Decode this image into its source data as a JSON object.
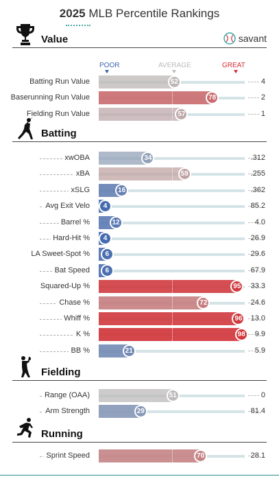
{
  "header": {
    "year": "2025",
    "title": "MLB Percentile Rankings"
  },
  "legend": {
    "poor": "POOR",
    "average": "AVERAGE",
    "great": "GREAT"
  },
  "savant_label": "savant",
  "colors": {
    "great": "#d22d32",
    "poor": "#3b64ae",
    "average": "#bdbdbd"
  },
  "sections": {
    "value": {
      "title": "Value",
      "icon": "trophy-icon",
      "rows": [
        {
          "label": "Batting Run Value",
          "pct": 52,
          "value": "4"
        },
        {
          "label": "Baserunning Run Value",
          "pct": 78,
          "value": "2"
        },
        {
          "label": "Fielding Run Value",
          "pct": 57,
          "value": "1"
        }
      ]
    },
    "batting": {
      "title": "Batting",
      "icon": "batter-icon",
      "rows": [
        {
          "label": "xwOBA",
          "pct": 34,
          "value": ".312"
        },
        {
          "label": "xBA",
          "pct": 59,
          "value": ".255"
        },
        {
          "label": "xSLG",
          "pct": 16,
          "value": ".362"
        },
        {
          "label": "Avg Exit Velo",
          "pct": 4,
          "value": "85.2"
        },
        {
          "label": "Barrel %",
          "pct": 12,
          "value": "4.0"
        },
        {
          "label": "Hard-Hit %",
          "pct": 4,
          "value": "26.9"
        },
        {
          "label": "LA Sweet-Spot %",
          "pct": 6,
          "value": "29.6"
        },
        {
          "label": "Bat Speed",
          "pct": 6,
          "value": "67.9"
        },
        {
          "label": "Squared-Up %",
          "pct": 95,
          "value": "33.3"
        },
        {
          "label": "Chase %",
          "pct": 72,
          "value": "24.6"
        },
        {
          "label": "Whiff %",
          "pct": 96,
          "value": "13.0"
        },
        {
          "label": "K %",
          "pct": 98,
          "value": "9.9"
        },
        {
          "label": "BB %",
          "pct": 21,
          "value": "5.9"
        }
      ]
    },
    "fielding": {
      "title": "Fielding",
      "icon": "fielder-icon",
      "rows": [
        {
          "label": "Range (OAA)",
          "pct": 51,
          "value": "0"
        },
        {
          "label": "Arm Strength",
          "pct": 29,
          "value": "81.4"
        }
      ]
    },
    "running": {
      "title": "Running",
      "icon": "runner-icon",
      "rows": [
        {
          "label": "Sprint Speed",
          "pct": 70,
          "value": "28.1"
        }
      ]
    }
  }
}
